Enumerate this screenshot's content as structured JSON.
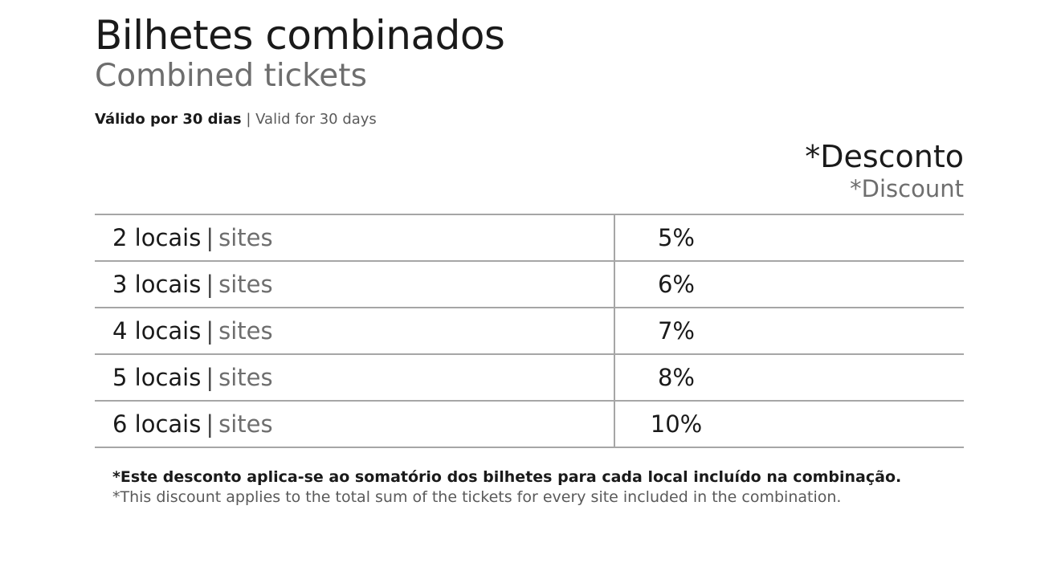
{
  "title": {
    "pt": "Bilhetes combinados",
    "en": "Combined tickets"
  },
  "validity": {
    "pt": "Válido por 30 dias",
    "separator": "|",
    "en": "Valid for 30 days"
  },
  "discount_header": {
    "pt": "*Desconto",
    "en": "*Discount"
  },
  "rows": [
    {
      "label_pt": "2 locais",
      "separator": "|",
      "label_en": "sites",
      "discount": "5%"
    },
    {
      "label_pt": "3 locais",
      "separator": "|",
      "label_en": "sites",
      "discount": "6%"
    },
    {
      "label_pt": "4 locais",
      "separator": "|",
      "label_en": "sites",
      "discount": "7%"
    },
    {
      "label_pt": "5 locais",
      "separator": "|",
      "label_en": "sites",
      "discount": "8%"
    },
    {
      "label_pt": "6 locais",
      "separator": "|",
      "label_en": "sites",
      "discount": "10%"
    }
  ],
  "footnote": {
    "pt": "*Este desconto aplica-se ao somatório dos bilhetes para cada local incluído na combinação.",
    "en": "*This discount applies to the total sum of the tickets for every site included in the combination."
  }
}
